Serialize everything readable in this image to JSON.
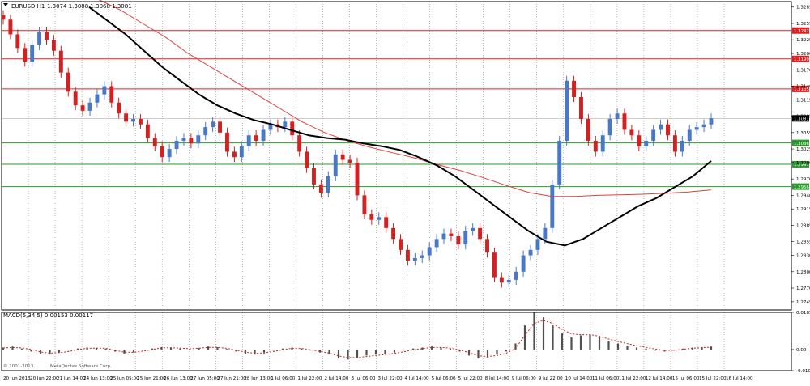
{
  "window": {
    "symbol_label": "EURUSD,H1",
    "ohlc_label": "1.3074 1.3088 1.3068 1.3081",
    "macd_label": "MACD(5,34,5) 0.00153 0.00117",
    "copyright": "MetaQuotes Software Corp.",
    "copyright_prefix": "© 2001-2013,"
  },
  "colors": {
    "bull": "#4a78c8",
    "bear": "#d42020",
    "resistance": "#e02020",
    "support": "#2a9a2a",
    "ma_fast": "#000000",
    "ma_slow": "#e04040",
    "histogram": "#505050",
    "signal": "#d02020",
    "grid": "#888888"
  },
  "chart_data": [
    {
      "type": "line",
      "title": "EURUSD,H1",
      "ylim": [
        1.273,
        1.3295
      ],
      "y_ticks": [
        "1.3285",
        "1.3255",
        "1.3225",
        "1.3200",
        "1.3170",
        "1.3140",
        "1.3115",
        "1.3085",
        "1.3055",
        "1.3025",
        "1.3000",
        "1.2970",
        "1.2940",
        "1.2915",
        "1.2885",
        "1.2855",
        "1.2830",
        "1.2800",
        "1.2770",
        "1.2745"
      ],
      "x_ticks": [
        "20 Jun 2013",
        "20 Jun 22:00",
        "21 Jun 14:00",
        "24 Jun 13:00",
        "25 Jun 05:00",
        "25 Jun 21:00",
        "26 Jun 13:00",
        "27 Jun 05:00",
        "27 Jun 21:00",
        "28 Jun 13:00",
        "1 Jul 06:00",
        "1 Jul 22:00",
        "2 Jul 14:00",
        "3 Jul 06:00",
        "3 Jul 22:00",
        "4 Jul 14:00",
        "5 Jul 06:00",
        "5 Jul 22:00",
        "8 Jul 14:00",
        "9 Jul 06:00",
        "9 Jul 22:00",
        "10 Jul 14:00",
        "11 Jul 06:00",
        "11 Jul 22:00",
        "12 Jul 14:00",
        "15 Jul 06:00",
        "15 Jul 22:00",
        "16 Jul 14:00"
      ],
      "horizontal_levels": [
        {
          "label": "1.3242",
          "value": 1.3242,
          "kind": "resistance"
        },
        {
          "label": "1.3190",
          "value": 1.319,
          "kind": "resistance"
        },
        {
          "label": "1.3135",
          "value": 1.3135,
          "kind": "resistance"
        },
        {
          "label": "1.3036",
          "value": 1.3036,
          "kind": "support"
        },
        {
          "label": "1.2997",
          "value": 1.2997,
          "kind": "support"
        },
        {
          "label": "1.2956",
          "value": 1.2956,
          "kind": "support"
        }
      ],
      "current_price": {
        "label": "1.3081",
        "value": 1.3081
      },
      "price_series": [
        1.3262,
        1.3235,
        1.321,
        1.3185,
        1.3215,
        1.324,
        1.3225,
        1.3205,
        1.3165,
        1.313,
        1.3105,
        1.3095,
        1.311,
        1.3125,
        1.314,
        1.311,
        1.309,
        1.3075,
        1.308,
        1.307,
        1.3045,
        1.303,
        1.301,
        1.3025,
        1.304,
        1.3045,
        1.3035,
        1.305,
        1.3065,
        1.3075,
        1.3055,
        1.302,
        1.301,
        1.303,
        1.305,
        1.304,
        1.306,
        1.307,
        1.3065,
        1.3075,
        1.305,
        1.302,
        1.299,
        1.296,
        1.2945,
        1.2975,
        1.3015,
        1.3005,
        1.3,
        1.294,
        1.2905,
        1.2895,
        1.29,
        1.288,
        1.286,
        1.284,
        1.282,
        1.2825,
        1.283,
        1.2845,
        1.286,
        1.287,
        1.2865,
        1.285,
        1.2875,
        1.288,
        1.286,
        1.2835,
        1.279,
        1.278,
        1.2785,
        1.28,
        1.283,
        1.284,
        1.286,
        1.288,
        1.296,
        1.304,
        1.315,
        1.312,
        1.308,
        1.304,
        1.302,
        1.305,
        1.308,
        1.309,
        1.306,
        1.305,
        1.303,
        1.304,
        1.306,
        1.307,
        1.305,
        1.302,
        1.304,
        1.306,
        1.3065,
        1.307,
        1.3081
      ],
      "ma_fast": [
        1.3285,
        1.326,
        1.3235,
        1.3205,
        1.3175,
        1.315,
        1.3125,
        1.3105,
        1.309,
        1.3078,
        1.307,
        1.306,
        1.305,
        1.3045,
        1.3042,
        1.3035,
        1.303,
        1.3023,
        1.301,
        1.2995,
        1.2975,
        1.295,
        1.2925,
        1.29,
        1.2875,
        1.2855,
        1.2848,
        1.286,
        1.288,
        1.29,
        1.292,
        1.2935,
        1.2955,
        1.2975,
        1.3003
      ],
      "ma_slow": [
        1.33,
        1.328,
        1.3255,
        1.323,
        1.32,
        1.3175,
        1.315,
        1.3125,
        1.31,
        1.3075,
        1.3055,
        1.304,
        1.3028,
        1.3018,
        1.3008,
        1.2996,
        1.2985,
        1.2972,
        1.2958,
        1.2945,
        1.2938,
        1.2938,
        1.294,
        1.2941,
        1.2942,
        1.2944,
        1.2946,
        1.295
      ]
    },
    {
      "type": "bar",
      "title": "MACD(5,34,5) 0.00153 0.00117",
      "ylim": [
        -0.0105,
        0.0185
      ],
      "y_ticks": [
        "0.0185",
        "0.00",
        "-0.0105"
      ],
      "histogram": [
        0.001,
        0.0015,
        0.0005,
        -0.001,
        -0.002,
        -0.0025,
        -0.0015,
        -0.0005,
        0.0005,
        0.001,
        0.0008,
        0.0005,
        -0.001,
        -0.002,
        -0.0015,
        -0.0005,
        0.0005,
        0.0012,
        0.001,
        0.0006,
        0.0002,
        0.0008,
        0.0015,
        0.0012,
        0.0003,
        -0.001,
        -0.002,
        -0.0025,
        -0.0015,
        -0.0005,
        0.0005,
        0.001,
        0.0005,
        -0.0005,
        -0.0015,
        -0.0025,
        -0.0045,
        -0.005,
        -0.004,
        -0.003,
        -0.0025,
        -0.002,
        -0.0015,
        -0.0005,
        0.0005,
        0.001,
        0.0015,
        0.001,
        0.0005,
        -0.001,
        -0.003,
        -0.0045,
        -0.004,
        -0.0025,
        -0.001,
        0.003,
        0.012,
        0.0185,
        0.016,
        0.012,
        0.008,
        0.006,
        0.007,
        0.0075,
        0.006,
        0.004,
        0.003,
        0.002,
        0.001,
        0.0005,
        -0.0005,
        -0.001,
        -0.0005,
        0.0005,
        0.001,
        0.0012,
        0.0015
      ],
      "signal": [
        0.0008,
        0.001,
        0.0008,
        0.0,
        -0.0012,
        -0.0018,
        -0.0016,
        -0.001,
        0.0,
        0.0006,
        0.0007,
        0.0006,
        -0.0004,
        -0.0013,
        -0.0014,
        -0.0008,
        0.0,
        0.0008,
        0.0009,
        0.0007,
        0.0004,
        0.0006,
        0.0011,
        0.0011,
        0.0006,
        -0.0003,
        -0.0013,
        -0.0019,
        -0.0017,
        -0.001,
        -0.0001,
        0.0006,
        0.0005,
        -0.0001,
        -0.0009,
        -0.0018,
        -0.0032,
        -0.004,
        -0.004,
        -0.0035,
        -0.003,
        -0.0025,
        -0.0019,
        -0.0011,
        -0.0002,
        0.0005,
        0.001,
        0.001,
        0.0007,
        -0.0002,
        -0.0016,
        -0.0031,
        -0.0035,
        -0.003,
        -0.0019,
        0.0006,
        0.007,
        0.013,
        0.0145,
        0.013,
        0.01,
        0.0078,
        0.0074,
        0.0074,
        0.0066,
        0.0052,
        0.004,
        0.0029,
        0.0019,
        0.0011,
        0.0002,
        -0.0004,
        -0.0004,
        0.0001,
        0.0006,
        0.0009,
        0.0012
      ]
    }
  ]
}
